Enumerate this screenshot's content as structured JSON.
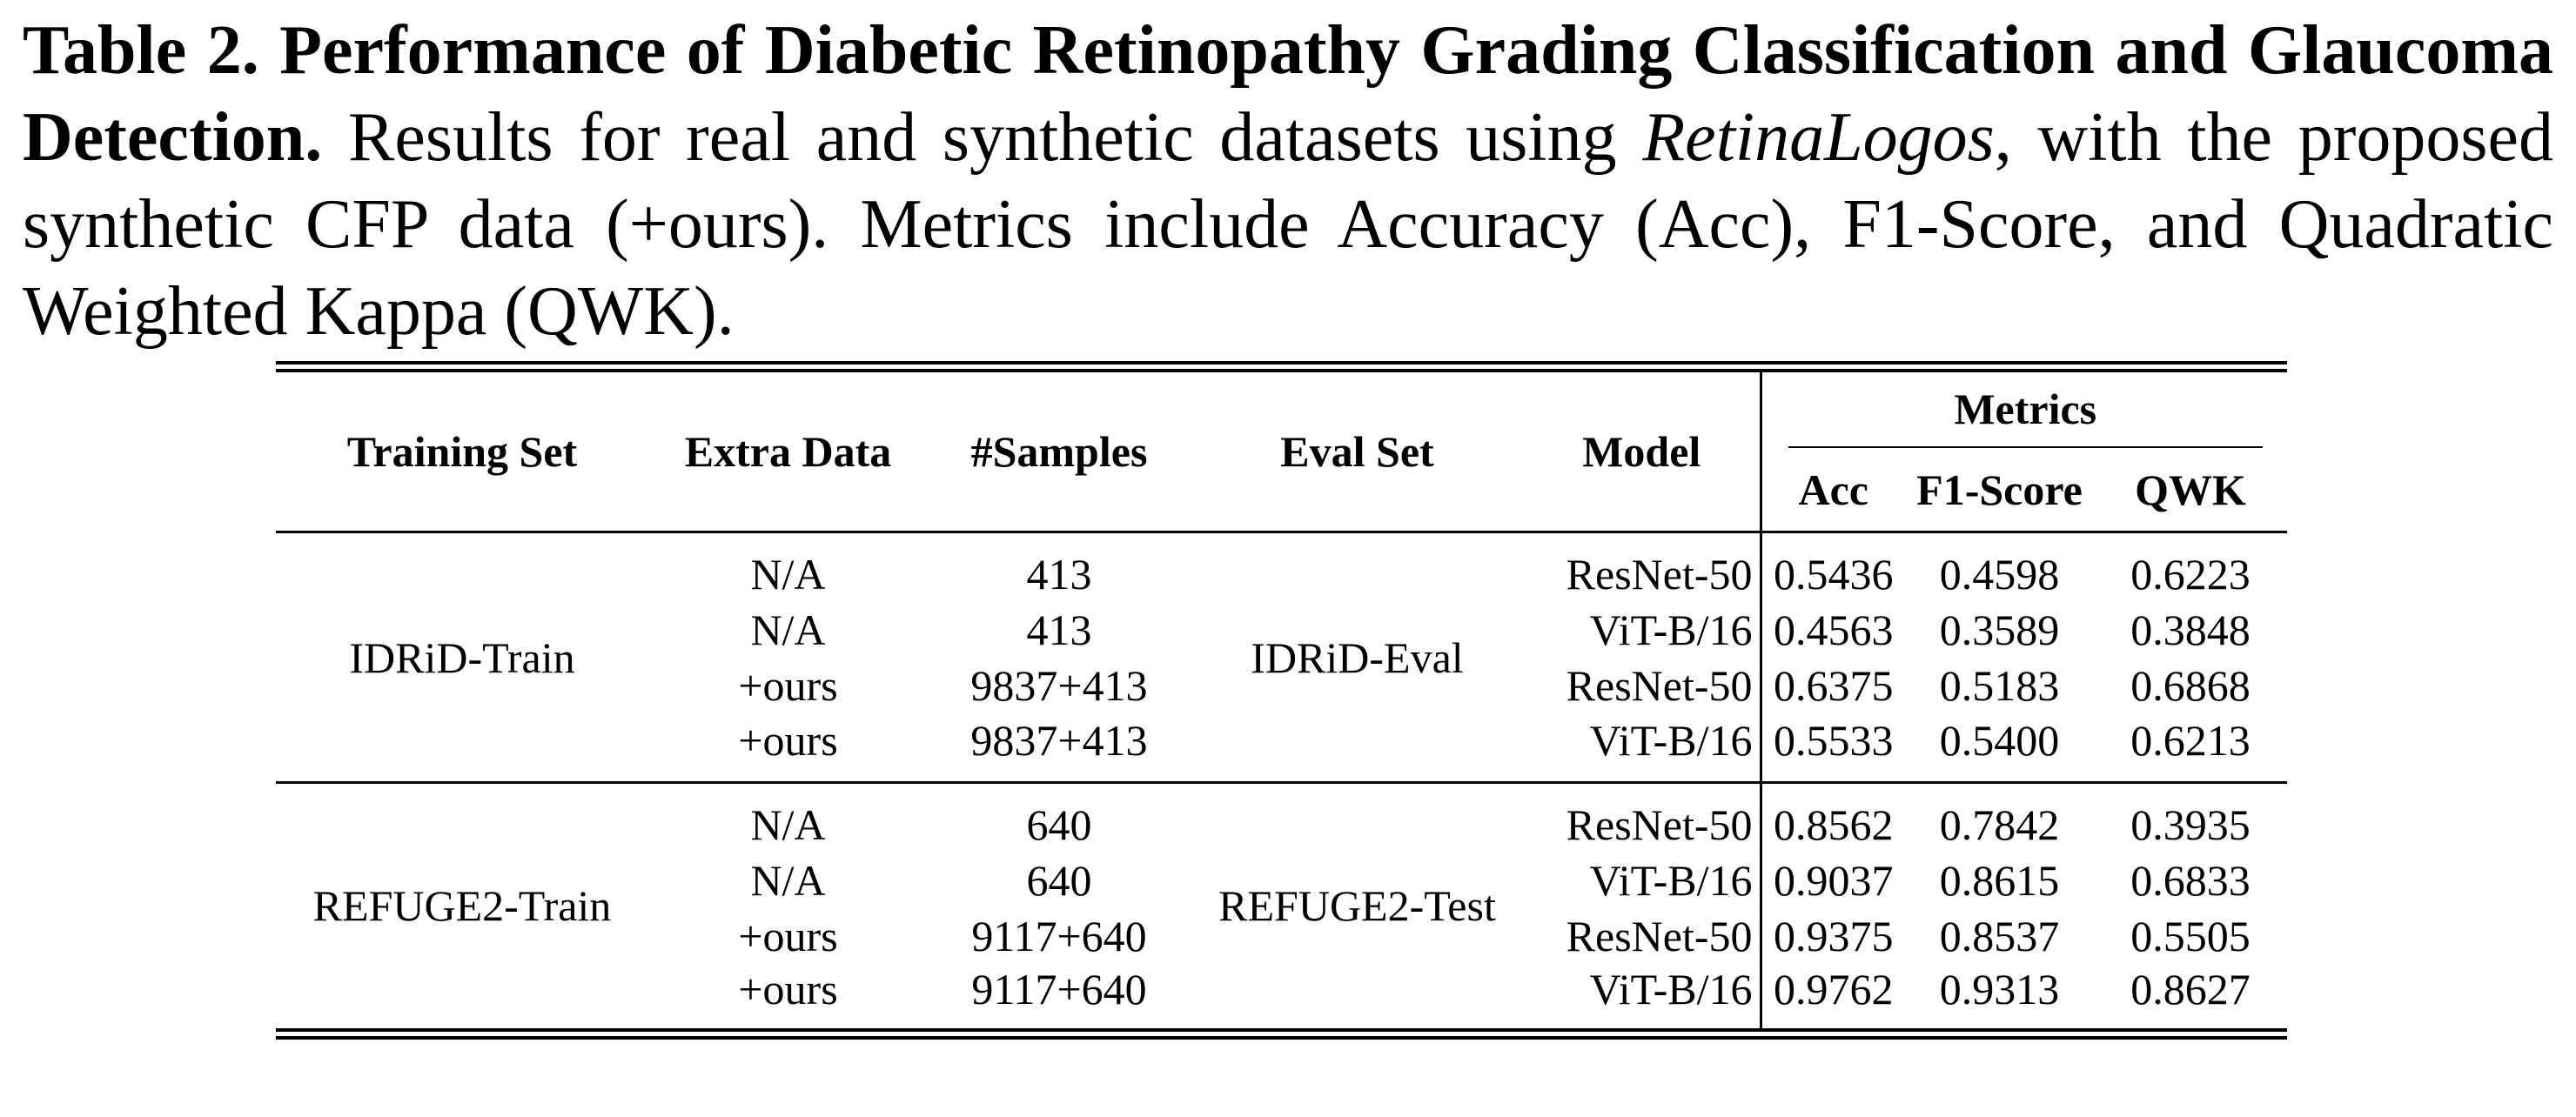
{
  "caption": {
    "title": "Table 2. Performance of Diabetic Retinopathy Grading Classification and Glaucoma Detection.",
    "body_before": "Results for real and synthetic datasets using ",
    "body_italic": "RetinaLogos",
    "body_after": ", with the proposed synthetic CFP data (+ours). Metrics include Accuracy (Acc), F1-Score, and Quadratic Weighted Kappa (QWK)."
  },
  "table": {
    "header": [
      "Training Set",
      "Extra Data",
      "#Samples",
      "Eval Set",
      "Model"
    ],
    "metrics_header": "Metrics",
    "metrics": [
      "Acc",
      "F1-Score",
      "QWK"
    ],
    "groups": [
      {
        "training_set": "IDRiD-Train",
        "eval_set": "IDRiD-Eval",
        "rows": [
          [
            "N/A",
            "413",
            "ResNet-50",
            "0.5436",
            "0.4598",
            "0.6223"
          ],
          [
            "N/A",
            "413",
            "ViT-B/16",
            "0.4563",
            "0.3589",
            "0.3848"
          ],
          [
            "+ours",
            "9837+413",
            "ResNet-50",
            "0.6375",
            "0.5183",
            "0.6868"
          ],
          [
            "+ours",
            "9837+413",
            "ViT-B/16",
            "0.5533",
            "0.5400",
            "0.6213"
          ]
        ]
      },
      {
        "training_set": "REFUGE2-Train",
        "eval_set": "REFUGE2-Test",
        "rows": [
          [
            "N/A",
            "640",
            "ResNet-50",
            "0.8562",
            "0.7842",
            "0.3935"
          ],
          [
            "N/A",
            "640",
            "ViT-B/16",
            "0.9037",
            "0.8615",
            "0.6833"
          ],
          [
            "+ours",
            "9117+640",
            "ResNet-50",
            "0.9375",
            "0.8537",
            "0.5505"
          ],
          [
            "+ours",
            "9117+640",
            "ViT-B/16",
            "0.9762",
            "0.9313",
            "0.8627"
          ]
        ]
      }
    ]
  }
}
